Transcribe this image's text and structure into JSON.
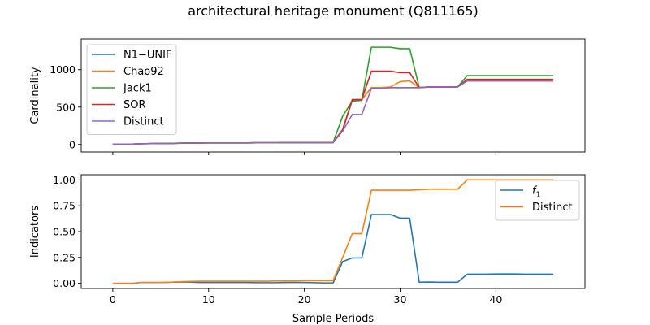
{
  "title": "architectural heritage monument (Q811165)",
  "chart_data": [
    {
      "type": "line",
      "xlabel": "",
      "ylabel": "Cardinality",
      "xlim": [
        -3.3,
        49.3
      ],
      "ylim": [
        -100,
        1410
      ],
      "xticks": [
        0,
        10,
        20,
        30,
        40
      ],
      "yticks": [
        0,
        500,
        1000
      ],
      "grid": false,
      "legend_position": "upper-left",
      "x": [
        0,
        1,
        2,
        3,
        4,
        5,
        6,
        7,
        8,
        9,
        10,
        11,
        12,
        13,
        14,
        15,
        16,
        17,
        18,
        19,
        20,
        21,
        22,
        23,
        24,
        25,
        26,
        27,
        28,
        29,
        30,
        31,
        32,
        33,
        34,
        35,
        36,
        37,
        38,
        39,
        40,
        41,
        42,
        43,
        44,
        45,
        46
      ],
      "series": [
        {
          "name": "N1−UNIF",
          "color": "#1f77b4",
          "values": [
            5,
            5,
            5,
            10,
            12,
            14,
            15,
            18,
            20,
            20,
            22,
            22,
            22,
            22,
            22,
            23,
            23,
            23,
            24,
            24,
            24,
            24,
            25,
            25,
            190,
            590,
            600,
            760,
            760,
            760,
            760,
            760,
            760,
            770,
            770,
            770,
            770,
            850,
            850,
            850,
            850,
            850,
            850,
            850,
            850,
            850,
            850
          ]
        },
        {
          "name": "Chao92",
          "color": "#ff7f0e",
          "values": [
            5,
            5,
            5,
            10,
            12,
            14,
            15,
            18,
            20,
            20,
            22,
            22,
            22,
            22,
            22,
            23,
            23,
            23,
            24,
            24,
            24,
            24,
            25,
            25,
            200,
            600,
            600,
            760,
            760,
            770,
            840,
            850,
            760,
            770,
            770,
            770,
            770,
            860,
            860,
            860,
            860,
            860,
            860,
            860,
            860,
            860,
            860
          ]
        },
        {
          "name": "Jack1",
          "color": "#2ca02c",
          "values": [
            5,
            5,
            5,
            10,
            12,
            14,
            15,
            18,
            20,
            20,
            22,
            22,
            22,
            22,
            22,
            23,
            23,
            23,
            24,
            24,
            24,
            24,
            25,
            25,
            380,
            580,
            590,
            1300,
            1300,
            1300,
            1280,
            1280,
            760,
            770,
            770,
            770,
            770,
            920,
            920,
            920,
            920,
            920,
            920,
            920,
            920,
            920,
            920
          ]
        },
        {
          "name": "SOR",
          "color": "#d62728",
          "values": [
            5,
            5,
            5,
            10,
            12,
            14,
            15,
            18,
            20,
            20,
            22,
            22,
            22,
            22,
            22,
            23,
            23,
            23,
            24,
            24,
            24,
            24,
            25,
            25,
            200,
            600,
            600,
            980,
            980,
            980,
            960,
            960,
            760,
            770,
            770,
            770,
            770,
            870,
            870,
            870,
            870,
            870,
            870,
            870,
            870,
            870,
            870
          ]
        },
        {
          "name": "Distinct",
          "color": "#9467bd",
          "values": [
            5,
            5,
            5,
            10,
            12,
            14,
            15,
            18,
            20,
            20,
            22,
            22,
            22,
            22,
            22,
            23,
            23,
            23,
            24,
            24,
            24,
            24,
            25,
            25,
            180,
            400,
            400,
            750,
            750,
            760,
            760,
            760,
            760,
            770,
            770,
            770,
            770,
            850,
            850,
            850,
            850,
            850,
            850,
            850,
            850,
            850,
            850
          ]
        }
      ]
    },
    {
      "type": "line",
      "xlabel": "Sample Periods",
      "ylabel": "Indicators",
      "xlim": [
        -3.3,
        49.3
      ],
      "ylim": [
        -0.05,
        1.05
      ],
      "xticks": [
        0,
        10,
        20,
        30,
        40
      ],
      "yticks": [
        "0.00",
        "0.25",
        "0.50",
        "0.75",
        "1.00"
      ],
      "grid": false,
      "legend_position": "upper-right",
      "x": [
        0,
        1,
        2,
        3,
        4,
        5,
        6,
        7,
        8,
        9,
        10,
        11,
        12,
        13,
        14,
        15,
        16,
        17,
        18,
        19,
        20,
        21,
        22,
        23,
        24,
        25,
        26,
        27,
        28,
        29,
        30,
        31,
        32,
        33,
        34,
        35,
        36,
        37,
        38,
        39,
        40,
        41,
        42,
        43,
        44,
        45,
        46
      ],
      "series": [
        {
          "name": "f1",
          "label_main": "f",
          "label_sub": "1",
          "color": "#1f77b4",
          "values": [
            0.0,
            0.0,
            0.0,
            0.008,
            0.008,
            0.008,
            0.01,
            0.012,
            0.012,
            0.008,
            0.008,
            0.008,
            0.008,
            0.008,
            0.008,
            0.006,
            0.006,
            0.006,
            0.008,
            0.008,
            0.008,
            0.006,
            0.004,
            0.004,
            0.21,
            0.245,
            0.245,
            0.665,
            0.665,
            0.665,
            0.63,
            0.63,
            0.01,
            0.012,
            0.01,
            0.01,
            0.01,
            0.088,
            0.088,
            0.088,
            0.09,
            0.09,
            0.09,
            0.088,
            0.088,
            0.088,
            0.088
          ]
        },
        {
          "name": "Distinct",
          "color": "#ff7f0e",
          "values": [
            0.0,
            0.0,
            0.0,
            0.008,
            0.008,
            0.008,
            0.01,
            0.015,
            0.018,
            0.02,
            0.02,
            0.02,
            0.02,
            0.02,
            0.02,
            0.02,
            0.02,
            0.022,
            0.022,
            0.022,
            0.025,
            0.025,
            0.025,
            0.025,
            0.25,
            0.48,
            0.48,
            0.9,
            0.9,
            0.9,
            0.9,
            0.9,
            0.905,
            0.91,
            0.91,
            0.91,
            0.91,
            1.0,
            1.0,
            1.0,
            1.0,
            1.0,
            1.0,
            1.0,
            1.0,
            1.0,
            1.0
          ]
        }
      ]
    }
  ]
}
